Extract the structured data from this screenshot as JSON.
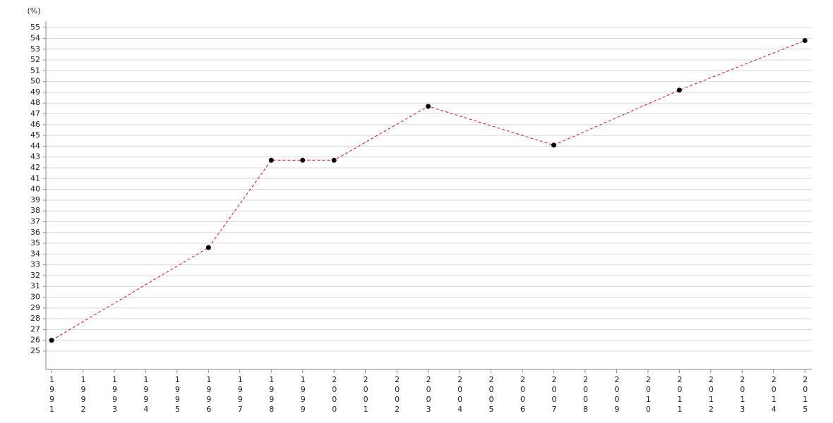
{
  "chart_data": {
    "type": "line",
    "y_unit": "(%)",
    "x": [
      1991,
      1996,
      1998,
      1999,
      2000,
      2003,
      2007,
      2011,
      2015
    ],
    "values": [
      26.0,
      34.6,
      42.7,
      42.7,
      42.7,
      47.7,
      44.1,
      49.2,
      53.8
    ],
    "color": "#d0103a",
    "marker_color": "#000000",
    "line_style": "dashed",
    "xlim": [
      1990.82,
      2015.22
    ],
    "xticks": [
      1991,
      1992,
      1993,
      1994,
      1995,
      1996,
      1997,
      1998,
      1999,
      2000,
      2001,
      2002,
      2003,
      2004,
      2005,
      2006,
      2007,
      2008,
      2009,
      2010,
      2011,
      2012,
      2013,
      2014,
      2015
    ],
    "ylim": [
      23.3,
      55.6
    ],
    "yticks": [
      25,
      26,
      27,
      28,
      29,
      30,
      31,
      32,
      33,
      34,
      35,
      36,
      37,
      38,
      39,
      40,
      41,
      42,
      43,
      44,
      45,
      46,
      47,
      48,
      49,
      50,
      51,
      52,
      53,
      54,
      55
    ],
    "grid": true
  }
}
